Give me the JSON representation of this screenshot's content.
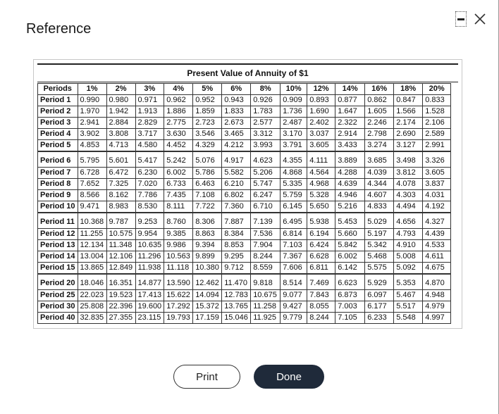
{
  "dialog": {
    "title": "Reference"
  },
  "controls": {
    "minimize_icon": "minimize-icon",
    "close_icon": "close-icon"
  },
  "table": {
    "title": "Present Value of Annuity of $1",
    "headers": [
      "Periods",
      "1%",
      "2%",
      "3%",
      "4%",
      "5%",
      "6%",
      "8%",
      "10%",
      "12%",
      "14%",
      "16%",
      "18%",
      "20%"
    ],
    "groups": [
      [
        {
          "label": "Period 1",
          "values": [
            "0.990",
            "0.980",
            "0.971",
            "0.962",
            "0.952",
            "0.943",
            "0.926",
            "0.909",
            "0.893",
            "0.877",
            "0.862",
            "0.847",
            "0.833"
          ]
        },
        {
          "label": "Period 2",
          "values": [
            "1.970",
            "1.942",
            "1.913",
            "1.886",
            "1.859",
            "1.833",
            "1.783",
            "1.736",
            "1.690",
            "1.647",
            "1.605",
            "1.566",
            "1.528"
          ]
        },
        {
          "label": "Period 3",
          "values": [
            "2.941",
            "2.884",
            "2.829",
            "2.775",
            "2.723",
            "2.673",
            "2.577",
            "2.487",
            "2.402",
            "2.322",
            "2.246",
            "2.174",
            "2.106"
          ]
        },
        {
          "label": "Period 4",
          "values": [
            "3.902",
            "3.808",
            "3.717",
            "3.630",
            "3.546",
            "3.465",
            "3.312",
            "3.170",
            "3.037",
            "2.914",
            "2.798",
            "2.690",
            "2.589"
          ]
        },
        {
          "label": "Period 5",
          "values": [
            "4.853",
            "4.713",
            "4.580",
            "4.452",
            "4.329",
            "4.212",
            "3.993",
            "3.791",
            "3.605",
            "3.433",
            "3.274",
            "3.127",
            "2.991"
          ]
        }
      ],
      [
        {
          "label": "Period 6",
          "values": [
            "5.795",
            "5.601",
            "5.417",
            "5.242",
            "5.076",
            "4.917",
            "4.623",
            "4.355",
            "4.111",
            "3.889",
            "3.685",
            "3.498",
            "3.326"
          ]
        },
        {
          "label": "Period 7",
          "values": [
            "6.728",
            "6.472",
            "6.230",
            "6.002",
            "5.786",
            "5.582",
            "5.206",
            "4.868",
            "4.564",
            "4.288",
            "4.039",
            "3.812",
            "3.605"
          ]
        },
        {
          "label": "Period 8",
          "values": [
            "7.652",
            "7.325",
            "7.020",
            "6.733",
            "6.463",
            "6.210",
            "5.747",
            "5.335",
            "4.968",
            "4.639",
            "4.344",
            "4.078",
            "3.837"
          ]
        },
        {
          "label": "Period 9",
          "values": [
            "8.566",
            "8.162",
            "7.786",
            "7.435",
            "7.108",
            "6.802",
            "6.247",
            "5.759",
            "5.328",
            "4.946",
            "4.607",
            "4.303",
            "4.031"
          ]
        },
        {
          "label": "Period 10",
          "values": [
            "9.471",
            "8.983",
            "8.530",
            "8.111",
            "7.722",
            "7.360",
            "6.710",
            "6.145",
            "5.650",
            "5.216",
            "4.833",
            "4.494",
            "4.192"
          ]
        }
      ],
      [
        {
          "label": "Period 11",
          "values": [
            "10.368",
            "9.787",
            "9.253",
            "8.760",
            "8.306",
            "7.887",
            "7.139",
            "6.495",
            "5.938",
            "5.453",
            "5.029",
            "4.656",
            "4.327"
          ]
        },
        {
          "label": "Period 12",
          "values": [
            "11.255",
            "10.575",
            "9.954",
            "9.385",
            "8.863",
            "8.384",
            "7.536",
            "6.814",
            "6.194",
            "5.660",
            "5.197",
            "4.793",
            "4.439"
          ]
        },
        {
          "label": "Period 13",
          "values": [
            "12.134",
            "11.348",
            "10.635",
            "9.986",
            "9.394",
            "8.853",
            "7.904",
            "7.103",
            "6.424",
            "5.842",
            "5.342",
            "4.910",
            "4.533"
          ]
        },
        {
          "label": "Period 14",
          "values": [
            "13.004",
            "12.106",
            "11.296",
            "10.563",
            "9.899",
            "9.295",
            "8.244",
            "7.367",
            "6.628",
            "6.002",
            "5.468",
            "5.008",
            "4.611"
          ]
        },
        {
          "label": "Period 15",
          "values": [
            "13.865",
            "12.849",
            "11.938",
            "11.118",
            "10.380",
            "9.712",
            "8.559",
            "7.606",
            "6.811",
            "6.142",
            "5.575",
            "5.092",
            "4.675"
          ]
        }
      ],
      [
        {
          "label": "Period 20",
          "values": [
            "18.046",
            "16.351",
            "14.877",
            "13.590",
            "12.462",
            "11.470",
            "9.818",
            "8.514",
            "7.469",
            "6.623",
            "5.929",
            "5.353",
            "4.870"
          ]
        },
        {
          "label": "Period 25",
          "values": [
            "22.023",
            "19.523",
            "17.413",
            "15.622",
            "14.094",
            "12.783",
            "10.675",
            "9.077",
            "7.843",
            "6.873",
            "6.097",
            "5.467",
            "4.948"
          ]
        },
        {
          "label": "Period 30",
          "values": [
            "25.808",
            "22.396",
            "19.600",
            "17.292",
            "15.372",
            "13.765",
            "11.258",
            "9.427",
            "8.055",
            "7.003",
            "6.177",
            "5.517",
            "4.979"
          ]
        },
        {
          "label": "Period 40",
          "values": [
            "32.835",
            "27.355",
            "23.115",
            "19.793",
            "17.159",
            "15.046",
            "11.925",
            "9.779",
            "8.244",
            "7.105",
            "6.233",
            "5.548",
            "4.997"
          ]
        }
      ]
    ]
  },
  "buttons": {
    "print_label": "Print",
    "done_label": "Done"
  },
  "colors": {
    "done_bg": "#1f2a3a",
    "border": "#333333"
  }
}
